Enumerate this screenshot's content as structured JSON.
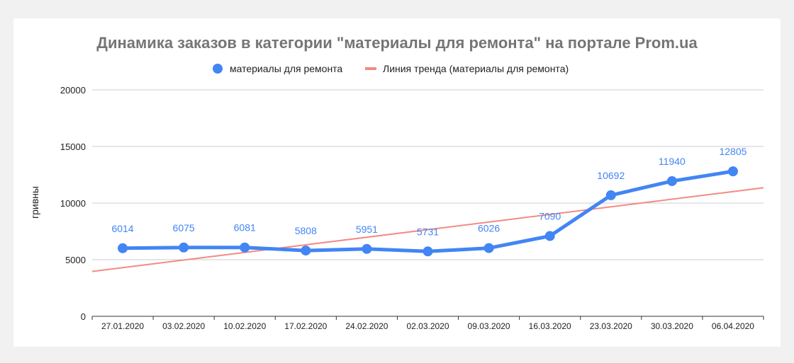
{
  "chart_data": {
    "type": "line",
    "title": "Динамика заказов в категории \"материалы для ремонта\" на портале Prom.ua",
    "ylabel": "гривны",
    "xlabel": "",
    "categories": [
      "27.01.2020",
      "03.02.2020",
      "10.02.2020",
      "17.02.2020",
      "24.02.2020",
      "02.03.2020",
      "09.03.2020",
      "16.03.2020",
      "23.03.2020",
      "30.03.2020",
      "06.04.2020"
    ],
    "series": [
      {
        "name": "материалы для ремонта",
        "values": [
          6014,
          6075,
          6081,
          5808,
          5951,
          5731,
          6026,
          7090,
          10692,
          11940,
          12805
        ],
        "data_labels": [
          "6014",
          "6075",
          "6081",
          "5808",
          "5951",
          "5731",
          "6026",
          "7090",
          "10692",
          "11940",
          "12805"
        ],
        "color": "#4285f4"
      }
    ],
    "trendline": {
      "name": "Линия тренда (материалы для ремонта)",
      "type": "linear",
      "color": "#f28b82"
    },
    "ylim": [
      0,
      20000
    ],
    "yticks": [
      "0",
      "5000",
      "10000",
      "15000",
      "20000"
    ],
    "grid": true,
    "legend": "top"
  }
}
